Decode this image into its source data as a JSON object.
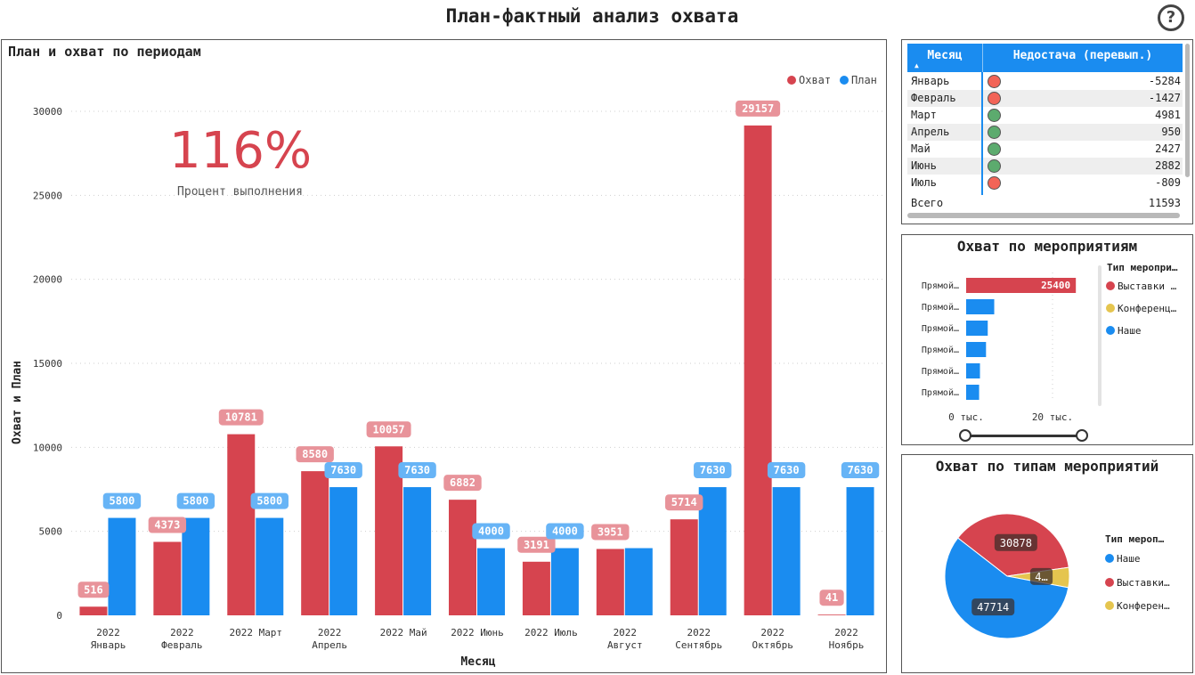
{
  "header": {
    "title": "План-фактный анализ охвата",
    "help_icon": "?"
  },
  "main_chart": {
    "title": "План и охват по периодам"
  },
  "kpi": {
    "value": "116%",
    "label": "Процент выполнения"
  },
  "chart_data": [
    {
      "type": "bar",
      "title": "План и охват по периодам",
      "xlabel": "Месяц",
      "ylabel": "Охват и План",
      "ylim": [
        0,
        30000
      ],
      "yticks": [
        0,
        5000,
        10000,
        15000,
        20000,
        25000,
        30000
      ],
      "grid": true,
      "legend_position": "top-right",
      "categories": [
        [
          "2022",
          "Январь"
        ],
        [
          "2022",
          "Февраль"
        ],
        [
          "2022 Март"
        ],
        [
          "2022",
          "Апрель"
        ],
        [
          "2022 Май"
        ],
        [
          "2022 Июнь"
        ],
        [
          "2022 Июль"
        ],
        [
          "2022",
          "Август"
        ],
        [
          "2022",
          "Сентябрь"
        ],
        [
          "2022",
          "Октябрь"
        ],
        [
          "2022",
          "Ноябрь"
        ]
      ],
      "series": [
        {
          "name": "Охват",
          "color": "#d6444f",
          "label_color": "#e8939a",
          "values": [
            516,
            4373,
            10781,
            8580,
            10057,
            6882,
            3191,
            3951,
            5714,
            29157,
            41
          ]
        },
        {
          "name": "План",
          "color": "#1a8cf0",
          "label_color": "#67b4f6",
          "values": [
            5800,
            5800,
            5800,
            7630,
            7630,
            4000,
            4000,
            4000,
            7630,
            7630,
            7630
          ]
        }
      ],
      "data_labels": {
        "Охват": [
          "516",
          "4373",
          "10781",
          "8580",
          "10057",
          "6882",
          "3191",
          "3951",
          "5714",
          "29157",
          "41"
        ],
        "План": [
          "5800",
          "5800",
          "5800",
          "7630",
          "7630",
          "4000",
          "4000",
          null,
          "7630",
          "7630",
          "7630"
        ]
      }
    },
    {
      "type": "table",
      "columns": [
        "Месяц",
        "Недостача (перевып.)"
      ],
      "rows": [
        {
          "month": "Январь",
          "value": "-5284",
          "status": "red"
        },
        {
          "month": "Февраль",
          "value": "-1427",
          "status": "red"
        },
        {
          "month": "Март",
          "value": "4981",
          "status": "green"
        },
        {
          "month": "Апрель",
          "value": "950",
          "status": "green"
        },
        {
          "month": "Май",
          "value": "2427",
          "status": "green"
        },
        {
          "month": "Июнь",
          "value": "2882",
          "status": "green"
        },
        {
          "month": "Июль",
          "value": "-809",
          "status": "red"
        }
      ],
      "total": {
        "label": "Всего",
        "value": "11593"
      }
    },
    {
      "type": "bar",
      "orientation": "horizontal",
      "title": "Охват по мероприятиям",
      "categories": [
        "Прямой…",
        "Прямой…",
        "Прямой…",
        "Прямой…",
        "Прямой…",
        "Прямой…"
      ],
      "values": [
        25400,
        6500,
        5000,
        4600,
        3200,
        3000
      ],
      "bar_series": [
        "Выставки …",
        "Наше",
        "Наше",
        "Наше",
        "Наше",
        "Наше"
      ],
      "data_labels": [
        "25400",
        null,
        null,
        null,
        null,
        null
      ],
      "xlim": [
        0,
        30000
      ],
      "xticks": [
        0,
        20000
      ],
      "xtick_labels": [
        "0 тыс.",
        "20 тыс."
      ],
      "legend_title": "Тип меропри…",
      "legend": [
        {
          "name": "Выставки …",
          "color": "#d6444f"
        },
        {
          "name": "Конференц…",
          "color": "#e5c54f"
        },
        {
          "name": "Наше",
          "color": "#1a8cf0"
        }
      ]
    },
    {
      "type": "pie",
      "title": "Охват по типам мероприятий",
      "slices": [
        {
          "name": "Наше",
          "value": 47714,
          "label": "47714",
          "color": "#1a8cf0"
        },
        {
          "name": "Выставки…",
          "value": 30878,
          "label": "30878",
          "color": "#d6444f"
        },
        {
          "name": "Конферен…",
          "value": 4300,
          "label": "4…",
          "color": "#e5c54f"
        }
      ],
      "legend_title": "Тип мероп…",
      "legend": [
        {
          "name": "Наше",
          "color": "#1a8cf0"
        },
        {
          "name": "Выставки…",
          "color": "#d6444f"
        },
        {
          "name": "Конферен…",
          "color": "#e5c54f"
        }
      ]
    }
  ],
  "events_chart": {
    "title": "Охват по мероприятиям"
  },
  "types_chart": {
    "title": "Охват по типам мероприятий"
  }
}
